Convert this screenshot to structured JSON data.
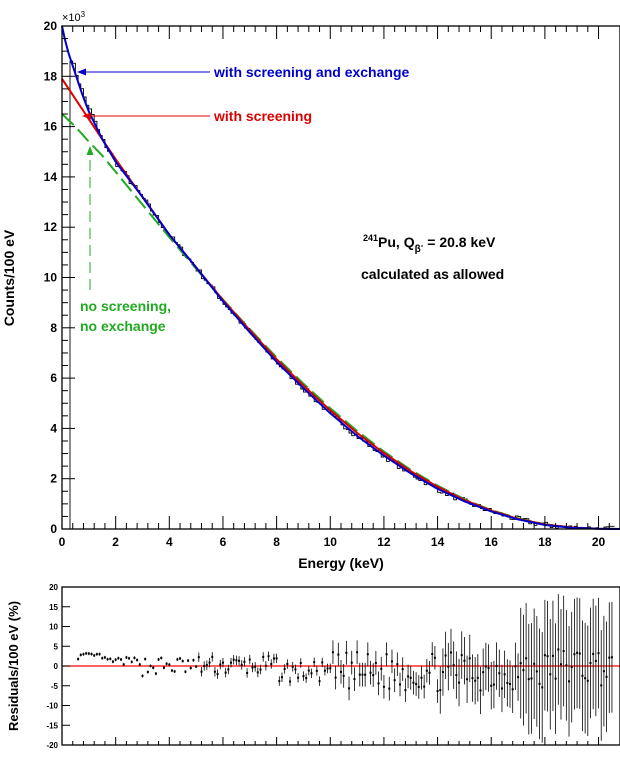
{
  "chart_data": [
    {
      "type": "line",
      "xlabel": "Energy (keV)",
      "ylabel": "Counts/100 eV",
      "y_multiplier_label": "×10",
      "y_multiplier_exp": "3",
      "xlim": [
        0,
        20.8
      ],
      "ylim": [
        0,
        20
      ],
      "xticks": [
        0,
        2,
        4,
        6,
        8,
        10,
        12,
        14,
        16,
        18,
        20
      ],
      "yticks": [
        0,
        2,
        4,
        6,
        8,
        10,
        12,
        14,
        16,
        18,
        20
      ],
      "colors": {
        "screening_exchange": "#0000cc",
        "screening": "#dd0000",
        "no_screening": "#22aa22",
        "data": "#000000",
        "residual_zero": "#ff0000"
      },
      "series": [
        {
          "key": "screening_exchange",
          "x": [
            0,
            0.1,
            0.25,
            0.5,
            0.75,
            1,
            1.5,
            2,
            3,
            4,
            5,
            6,
            7,
            8,
            9,
            10,
            11,
            12,
            13,
            14,
            15,
            16,
            17,
            18,
            19,
            20,
            20.8
          ],
          "y": [
            20.0,
            19.5,
            18.9,
            18.1,
            17.3,
            16.6,
            15.5,
            14.6,
            13.2,
            11.7,
            10.4,
            9.05,
            7.82,
            6.65,
            5.6,
            4.6,
            3.7,
            2.92,
            2.21,
            1.6,
            1.1,
            0.7,
            0.38,
            0.16,
            0.05,
            0.01,
            0.0
          ]
        },
        {
          "key": "screening",
          "x": [
            0,
            0.5,
            1,
            1.5,
            2,
            3,
            4,
            5,
            6,
            7,
            8,
            9,
            10,
            11,
            12,
            13,
            14,
            15,
            16,
            17,
            18,
            19,
            20,
            20.8
          ],
          "y": [
            17.9,
            17.1,
            16.3,
            15.5,
            14.7,
            13.2,
            11.7,
            10.4,
            9.1,
            7.9,
            6.75,
            5.7,
            4.72,
            3.82,
            3.02,
            2.3,
            1.68,
            1.15,
            0.73,
            0.4,
            0.18,
            0.06,
            0.01,
            0.0
          ]
        },
        {
          "key": "no_screening",
          "x": [
            0,
            0.5,
            1,
            1.5,
            2,
            3,
            4,
            5,
            6,
            7,
            8,
            9,
            10,
            11,
            12,
            13,
            14,
            15,
            16,
            17,
            18,
            19,
            20,
            20.8
          ],
          "y": [
            16.5,
            16.0,
            15.4,
            14.85,
            14.2,
            12.9,
            11.6,
            10.35,
            9.12,
            7.95,
            6.82,
            5.78,
            4.8,
            3.9,
            3.08,
            2.35,
            1.72,
            1.18,
            0.75,
            0.42,
            0.19,
            0.06,
            0.01,
            0.0
          ]
        }
      ],
      "annotations": {
        "screening_exchange": "with screening and exchange",
        "screening": "with screening",
        "no_screening_line1": "no screening,",
        "no_screening_line2": "no exchange",
        "isotope_mass": "241",
        "isotope_symbol": "Pu, Q",
        "q_subscript": "β",
        "q_superscript": "-",
        "q_value": " = 20.8 keV",
        "calculated": "calculated as allowed"
      }
    },
    {
      "type": "scatter",
      "ylabel": "Residuals/100 eV (%)",
      "xlim": [
        0,
        20.8
      ],
      "ylim": [
        -20,
        20
      ],
      "yticks": [
        -20,
        -15,
        -10,
        -5,
        0,
        5,
        10,
        15,
        20
      ],
      "zero_line": 0
    }
  ]
}
